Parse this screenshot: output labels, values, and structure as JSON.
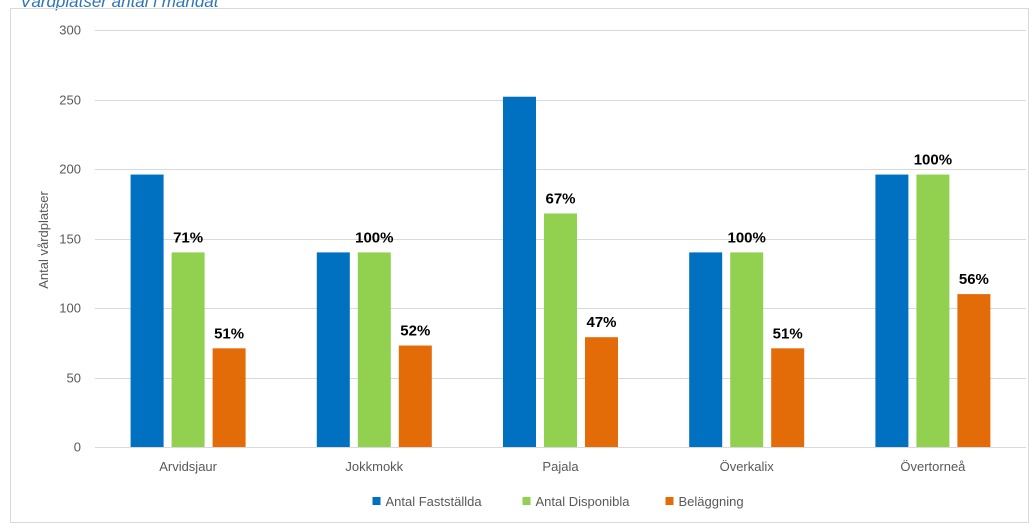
{
  "chart_data": {
    "type": "bar",
    "title": "Vårdplatser antal i mandat",
    "ylabel": "Antal vårdplatser",
    "xlabel": "",
    "ylim": [
      0,
      300
    ],
    "yticks": [
      0,
      50,
      100,
      150,
      200,
      250,
      300
    ],
    "grid": true,
    "legend_position": "bottom",
    "categories": [
      "Arvidsjaur",
      "Jokkmokk",
      "Pajala",
      "Överkalix",
      "Övertorneå"
    ],
    "series": [
      {
        "name": "Antal Fastställda",
        "color": "#0070c0",
        "values": [
          196,
          140,
          252,
          140,
          196
        ],
        "labels": [
          "",
          "",
          "",
          "",
          ""
        ]
      },
      {
        "name": "Antal Disponibla",
        "color": "#92d050",
        "values": [
          140,
          140,
          168,
          140,
          196
        ],
        "labels": [
          "71%",
          "100%",
          "67%",
          "100%",
          "100%"
        ]
      },
      {
        "name": "Beläggning",
        "color": "#e36c09",
        "values": [
          71,
          73,
          79,
          71,
          110
        ],
        "labels": [
          "51%",
          "52%",
          "47%",
          "51%",
          "56%"
        ]
      }
    ]
  }
}
